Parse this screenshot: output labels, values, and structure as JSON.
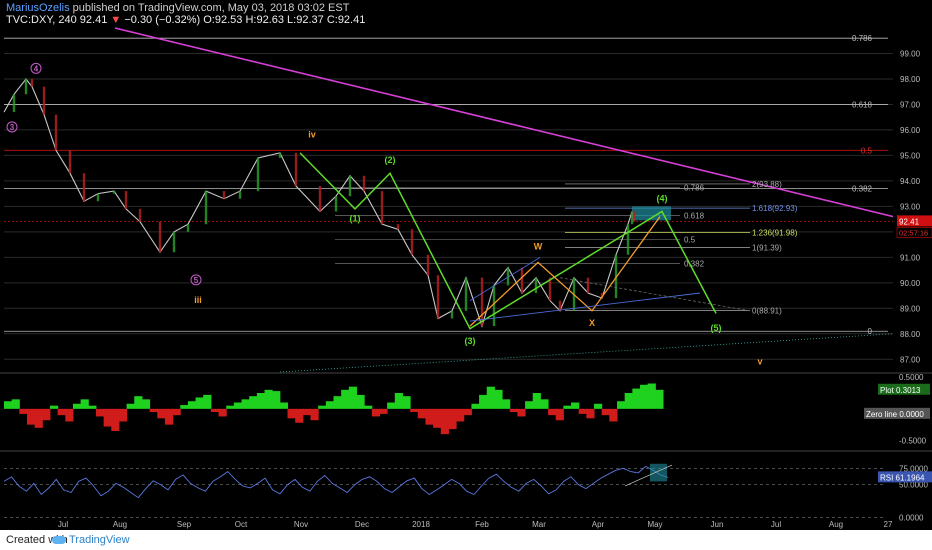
{
  "header": {
    "author": "MariusOzelis",
    "published": "published on TradingView.com, May 03, 2018 03:02 EST",
    "symbol": "TVC:DXY, 240",
    "last": "92.41",
    "change": "−0.30 (−0.32%)",
    "open": "O:92.53",
    "high": "H:92.63",
    "low": "L:92.37",
    "close": "C:92.41"
  },
  "footer": {
    "created": "Created with",
    "brand": "TradingView"
  },
  "colors": {
    "background": "#000000",
    "grid": "#2a2a2a",
    "magenta": "#d640d6",
    "green": "#5edc2a",
    "orange": "#f39c2b",
    "purple": "#c05cc8",
    "red": "#e02020",
    "blue": "#4a6bd8"
  },
  "chart_data": [
    {
      "type": "line",
      "title": "TVC:DXY, 240",
      "price_axis_ticks": [
        "99.00",
        "98.00",
        "97.00",
        "96.00",
        "95.00",
        "94.00",
        "93.00",
        "92.00",
        "91.00",
        "90.00",
        "89.00",
        "88.00",
        "87.00"
      ],
      "ylim": [
        86.5,
        100.0
      ],
      "time_axis_ticks": [
        "Jul",
        "Aug",
        "Sep",
        "Oct",
        "Nov",
        "Dec",
        "2018",
        "Feb",
        "Mar",
        "Apr",
        "May",
        "Jun",
        "Jul",
        "Aug",
        "27"
      ],
      "last_price_label": "92.41",
      "countdown_label": "02:57:16",
      "price_path": [
        [
          "Jun 22",
          96.7
        ],
        [
          "Jun 27",
          97.4
        ],
        [
          "Jul 3",
          98.0
        ],
        [
          "Jul 6",
          97.7
        ],
        [
          "Jul 12",
          96.6
        ],
        [
          "Jul 18",
          95.2
        ],
        [
          "Jul 25",
          94.3
        ],
        [
          "Aug 1",
          93.2
        ],
        [
          "Aug 8",
          93.5
        ],
        [
          "Aug 16",
          93.6
        ],
        [
          "Aug 22",
          92.9
        ],
        [
          "Aug 29",
          92.4
        ],
        [
          "Sep 8",
          91.2
        ],
        [
          "Sep 15",
          92.0
        ],
        [
          "Sep 22",
          92.3
        ],
        [
          "Oct 1",
          93.6
        ],
        [
          "Oct 10",
          93.3
        ],
        [
          "Oct 18",
          93.6
        ],
        [
          "Oct 27",
          94.9
        ],
        [
          "Nov 7",
          95.1
        ],
        [
          "Nov 15",
          93.8
        ],
        [
          "Nov 27",
          92.8
        ],
        [
          "Dec 5",
          93.4
        ],
        [
          "Dec 12",
          94.2
        ],
        [
          "Dec 19",
          93.6
        ],
        [
          "Dec 28",
          92.3
        ],
        [
          "Jan 5",
          92.1
        ],
        [
          "Jan 12",
          91.1
        ],
        [
          "Jan 20",
          90.3
        ],
        [
          "Jan 25",
          88.6
        ],
        [
          "Feb 1",
          88.9
        ],
        [
          "Feb 8",
          90.2
        ],
        [
          "Feb 16",
          88.3
        ],
        [
          "Feb 22",
          89.9
        ],
        [
          "Mar 1",
          90.6
        ],
        [
          "Mar 8",
          89.6
        ],
        [
          "Mar 15",
          90.2
        ],
        [
          "Mar 22",
          89.3
        ],
        [
          "Mar 27",
          88.9
        ],
        [
          "Apr 3",
          90.2
        ],
        [
          "Apr 10",
          89.6
        ],
        [
          "Apr 17",
          89.4
        ],
        [
          "Apr 24",
          91.1
        ],
        [
          "Apr 30",
          92.3
        ],
        [
          "May 2",
          92.8
        ],
        [
          "May 3",
          92.41
        ]
      ],
      "fib_levels_right": [
        {
          "label": "0.786",
          "price": 99.6
        },
        {
          "label": "0.618",
          "price": 97.0
        },
        {
          "label": "0.5",
          "price": 95.2
        },
        {
          "label": "0.382",
          "price": 93.7
        },
        {
          "label": "0",
          "price": 88.1
        }
      ],
      "fib_extension_labels": [
        {
          "label": "2(93.88)"
        },
        {
          "label": "1.618(92.93)"
        },
        {
          "label": "1.236(91.98)"
        },
        {
          "label": "1(91.39)"
        },
        {
          "label": "0(88.91)"
        }
      ],
      "fib_retracement_labels": [
        "0.786",
        "0.618",
        "0.5",
        "0.382"
      ],
      "wave_labels": [
        {
          "label": "3",
          "style": "circled"
        },
        {
          "label": "4",
          "style": "circled"
        },
        {
          "label": "5",
          "style": "circled"
        },
        {
          "label": "iii",
          "style": "roman"
        },
        {
          "label": "iv",
          "style": "roman"
        },
        {
          "label": "v",
          "style": "roman"
        },
        {
          "label": "(1)",
          "style": "paren"
        },
        {
          "label": "(2)",
          "style": "paren"
        },
        {
          "label": "(3)",
          "style": "paren"
        },
        {
          "label": "(4)",
          "style": "paren"
        },
        {
          "label": "(5)",
          "style": "paren"
        },
        {
          "label": "W",
          "style": "letter"
        },
        {
          "label": "X",
          "style": "letter"
        }
      ]
    },
    {
      "type": "bar",
      "title": "Oscillator",
      "axis_ticks": [
        "0.5000",
        "-0.5000"
      ],
      "ylim": [
        -0.65,
        0.55
      ],
      "series": [
        {
          "name": "Plot",
          "last_value": "0.3013"
        },
        {
          "name": "Zero line",
          "last_value": "0.0000"
        }
      ],
      "values": [
        0.12,
        0.15,
        -0.08,
        -0.25,
        -0.3,
        -0.18,
        0.05,
        -0.1,
        -0.2,
        0.08,
        0.15,
        0.05,
        -0.12,
        -0.28,
        -0.35,
        -0.2,
        0.08,
        0.2,
        0.15,
        -0.05,
        -0.15,
        -0.25,
        -0.1,
        0.06,
        0.12,
        0.18,
        0.22,
        -0.05,
        -0.12,
        0.05,
        0.1,
        0.15,
        0.2,
        0.25,
        0.3,
        0.28,
        0.1,
        -0.15,
        -0.22,
        -0.1,
        -0.18,
        0.05,
        0.12,
        0.2,
        0.3,
        0.35,
        0.22,
        0.05,
        -0.12,
        -0.08,
        0.1,
        0.25,
        0.2,
        -0.05,
        -0.15,
        -0.25,
        -0.3,
        -0.4,
        -0.32,
        -0.2,
        -0.1,
        0.08,
        0.22,
        0.35,
        0.3,
        0.15,
        -0.05,
        -0.12,
        0.12,
        0.25,
        0.15,
        -0.1,
        -0.18,
        0.05,
        0.1,
        -0.08,
        -0.15,
        0.08,
        -0.1,
        -0.2,
        0.12,
        0.25,
        0.32,
        0.38,
        0.4,
        0.3
      ]
    },
    {
      "type": "line",
      "title": "RSI",
      "axis_ticks": [
        "75.0000",
        "50.0000",
        "0.0000"
      ],
      "ylim": [
        -1,
        100
      ],
      "series": [
        {
          "name": "RSI",
          "last_value": "61.1964"
        }
      ],
      "values": [
        55,
        62,
        48,
        40,
        52,
        35,
        45,
        58,
        42,
        38,
        55,
        60,
        48,
        33,
        40,
        52,
        46,
        38,
        30,
        44,
        56,
        50,
        42,
        58,
        65,
        52,
        45,
        40,
        55,
        62,
        70,
        58,
        48,
        45,
        52,
        60,
        42,
        36,
        50,
        58,
        46,
        40,
        55,
        64,
        52,
        45,
        38,
        50,
        58,
        62,
        55,
        44,
        38,
        47,
        56,
        60,
        44,
        35,
        42,
        50,
        58,
        52,
        40,
        35,
        48,
        60,
        66,
        55,
        46,
        40,
        52,
        58,
        48,
        36,
        42,
        55,
        62,
        50,
        44,
        52,
        60,
        66,
        72,
        75,
        70,
        68,
        78,
        72,
        65,
        61
      ]
    }
  ]
}
